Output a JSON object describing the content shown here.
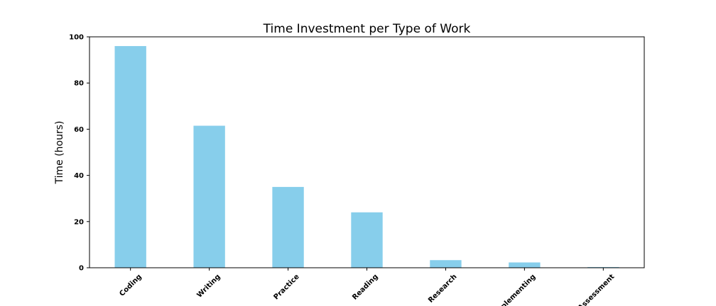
{
  "chart_data": {
    "type": "bar",
    "title": "Time Investment per Type of Work",
    "xlabel": "",
    "ylabel": "Time (hours)",
    "categories": [
      "Coding",
      "Writing",
      "Practice",
      "Reading",
      "Research",
      "Implementing",
      "Assessment"
    ],
    "values": [
      96,
      61.5,
      35,
      24,
      3.3,
      2.3,
      0.3
    ],
    "ylim": [
      0,
      100
    ],
    "yticks": [
      0,
      20,
      40,
      60,
      80,
      100
    ],
    "grid": false,
    "bar_color": "#87ceeb",
    "x_tick_rotation": -45
  }
}
